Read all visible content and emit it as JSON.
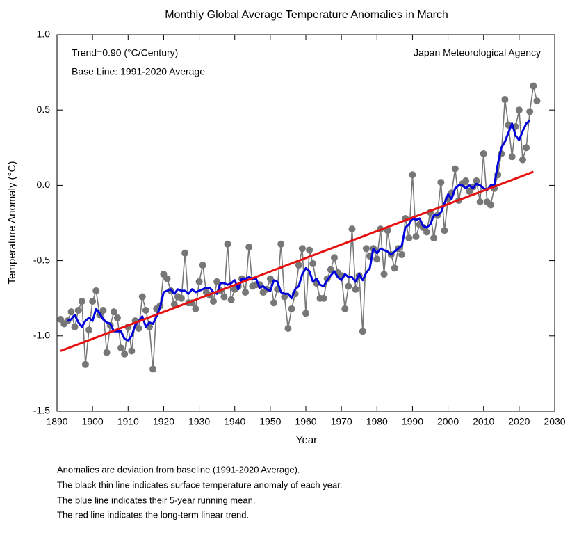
{
  "chart_data": {
    "type": "line",
    "title": "Monthly Global Average Temperature Anomalies in March",
    "annotations": [
      "Trend=0.90 (°C/Century)",
      "Base Line: 1991-2020 Average",
      "Japan Meteorological Agency"
    ],
    "xlabel": "Year",
    "ylabel": "Temperature Anomaly (°C)",
    "notes": [
      "Anomalies are deviation from baseline (1991-2020 Average).",
      "The black thin line indicates surface temperature anomaly of each year.",
      "The blue line indicates their 5-year running mean.",
      "The red line indicates the long-term linear trend."
    ],
    "xlim": [
      1890,
      2030
    ],
    "xticks": [
      1890,
      1900,
      1910,
      1920,
      1930,
      1940,
      1950,
      1960,
      1970,
      1980,
      1990,
      2000,
      2010,
      2020,
      2030
    ],
    "ylim": [
      -1.5,
      1.0
    ],
    "yticks": [
      {
        "value": 1.0,
        "label": "1.0"
      },
      {
        "value": 0.5,
        "label": "0.5"
      },
      {
        "value": 0.0,
        "label": "0.0"
      },
      {
        "value": -0.5,
        "label": "-0.5"
      },
      {
        "value": -1.0,
        "label": "-1.0"
      },
      {
        "value": -1.5,
        "label": "-1.5"
      }
    ],
    "x": [
      1891,
      1892,
      1893,
      1894,
      1895,
      1896,
      1897,
      1898,
      1899,
      1900,
      1901,
      1902,
      1903,
      1904,
      1905,
      1906,
      1907,
      1908,
      1909,
      1910,
      1911,
      1912,
      1913,
      1914,
      1915,
      1916,
      1917,
      1918,
      1919,
      1920,
      1921,
      1922,
      1923,
      1924,
      1925,
      1926,
      1927,
      1928,
      1929,
      1930,
      1931,
      1932,
      1933,
      1934,
      1935,
      1936,
      1937,
      1938,
      1939,
      1940,
      1941,
      1942,
      1943,
      1944,
      1945,
      1946,
      1947,
      1948,
      1949,
      1950,
      1951,
      1952,
      1953,
      1954,
      1955,
      1956,
      1957,
      1958,
      1959,
      1960,
      1961,
      1962,
      1963,
      1964,
      1965,
      1966,
      1967,
      1968,
      1969,
      1970,
      1971,
      1972,
      1973,
      1974,
      1975,
      1976,
      1977,
      1978,
      1979,
      1980,
      1981,
      1982,
      1983,
      1984,
      1985,
      1986,
      1987,
      1988,
      1989,
      1990,
      1991,
      1992,
      1993,
      1994,
      1995,
      1996,
      1997,
      1998,
      1999,
      2000,
      2001,
      2002,
      2003,
      2004,
      2005,
      2006,
      2007,
      2008,
      2009,
      2010,
      2011,
      2012,
      2013,
      2014,
      2015,
      2016,
      2017,
      2018,
      2019,
      2020,
      2021,
      2022,
      2023,
      2024,
      2025
    ],
    "series": [
      {
        "color": "#777777",
        "markers": true,
        "values": [
          -0.89,
          -0.92,
          -0.9,
          -0.84,
          -0.94,
          -0.83,
          -0.77,
          -1.19,
          -0.96,
          -0.77,
          -0.7,
          -0.86,
          -0.83,
          -1.11,
          -0.93,
          -0.84,
          -0.88,
          -1.08,
          -1.12,
          -0.94,
          -1.1,
          -0.9,
          -0.95,
          -0.74,
          -0.83,
          -0.94,
          -1.22,
          -0.82,
          -0.8,
          -0.59,
          -0.62,
          -0.7,
          -0.79,
          -0.74,
          -0.75,
          -0.45,
          -0.78,
          -0.78,
          -0.82,
          -0.64,
          -0.53,
          -0.71,
          -0.73,
          -0.77,
          -0.64,
          -0.7,
          -0.74,
          -0.39,
          -0.76,
          -0.69,
          -0.67,
          -0.62,
          -0.71,
          -0.41,
          -0.67,
          -0.66,
          -0.66,
          -0.71,
          -0.69,
          -0.62,
          -0.78,
          -0.69,
          -0.39,
          -0.74,
          -0.95,
          -0.82,
          -0.72,
          -0.53,
          -0.42,
          -0.85,
          -0.43,
          -0.52,
          -0.65,
          -0.75,
          -0.75,
          -0.62,
          -0.56,
          -0.48,
          -0.58,
          -0.6,
          -0.82,
          -0.67,
          -0.29,
          -0.69,
          -0.6,
          -0.97,
          -0.42,
          -0.47,
          -0.42,
          -0.49,
          -0.29,
          -0.59,
          -0.3,
          -0.46,
          -0.55,
          -0.42,
          -0.46,
          -0.22,
          -0.35,
          0.07,
          -0.34,
          -0.26,
          -0.28,
          -0.31,
          -0.18,
          -0.35,
          -0.2,
          0.02,
          -0.3,
          -0.09,
          -0.05,
          0.11,
          -0.1,
          0.01,
          0.03,
          -0.04,
          -0.01,
          0.03,
          -0.11,
          0.21,
          -0.11,
          -0.13,
          -0.02,
          0.07,
          0.21,
          0.57,
          0.4,
          0.19,
          0.39,
          0.5,
          0.17,
          0.25,
          0.49,
          0.66,
          0.56
        ]
      },
      {
        "color": "#0000dd",
        "markers": false,
        "values": [
          null,
          null,
          -0.9,
          -0.89,
          -0.86,
          -0.91,
          -0.94,
          -0.9,
          -0.88,
          -0.9,
          -0.82,
          -0.85,
          -0.89,
          -0.91,
          -0.92,
          -0.97,
          -0.97,
          -0.97,
          -1.02,
          -1.03,
          -1.0,
          -0.93,
          -0.9,
          -0.87,
          -0.94,
          -0.91,
          -0.92,
          -0.87,
          -0.81,
          -0.71,
          -0.7,
          -0.69,
          -0.72,
          -0.69,
          -0.7,
          -0.7,
          -0.72,
          -0.69,
          -0.71,
          -0.7,
          -0.69,
          -0.68,
          -0.68,
          -0.71,
          -0.72,
          -0.65,
          -0.65,
          -0.66,
          -0.65,
          -0.63,
          -0.69,
          -0.62,
          -0.62,
          -0.61,
          -0.62,
          -0.62,
          -0.68,
          -0.67,
          -0.69,
          -0.7,
          -0.63,
          -0.64,
          -0.71,
          -0.72,
          -0.72,
          -0.75,
          -0.69,
          -0.67,
          -0.59,
          -0.55,
          -0.57,
          -0.64,
          -0.62,
          -0.66,
          -0.67,
          -0.63,
          -0.6,
          -0.57,
          -0.61,
          -0.63,
          -0.59,
          -0.61,
          -0.61,
          -0.64,
          -0.59,
          -0.63,
          -0.58,
          -0.55,
          -0.42,
          -0.45,
          -0.42,
          -0.43,
          -0.44,
          -0.46,
          -0.44,
          -0.42,
          -0.4,
          -0.28,
          -0.26,
          -0.22,
          -0.23,
          -0.22,
          -0.27,
          -0.28,
          -0.26,
          -0.2,
          -0.2,
          -0.18,
          -0.12,
          -0.06,
          -0.09,
          -0.02,
          0.0,
          0.0,
          -0.02,
          0.0,
          -0.02,
          0.01,
          0.0,
          -0.02,
          -0.03,
          0.0,
          0.0,
          0.14,
          0.25,
          0.29,
          0.35,
          0.41,
          0.33,
          0.3,
          0.36,
          0.41,
          0.43,
          null,
          null
        ]
      }
    ],
    "trend": {
      "color": "#e8100f",
      "x": [
        1891,
        2024
      ],
      "values": [
        -1.1,
        0.09
      ]
    }
  }
}
